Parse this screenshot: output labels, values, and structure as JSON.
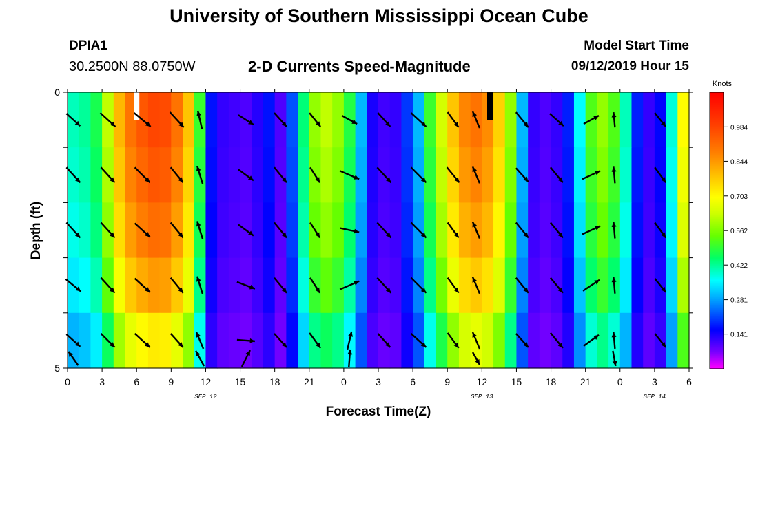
{
  "page": {
    "title": "University of Southern Mississippi Ocean Cube",
    "footer_title": "University of Southern Mississippi Ocean Cube",
    "station": "DPIA1",
    "coordinates": "30.2500N 88.0750W",
    "subtitle": "2-D Currents Speed-Magnitude",
    "model_label": "Model Start Time",
    "model_value": "09/12/2019 Hour 15"
  },
  "chart_data": {
    "type": "heatmap",
    "title": "2-D Currents Speed-Magnitude",
    "xlabel": "Forecast Time(Z)",
    "ylabel": "Depth (ft)",
    "x_ticks": [
      "0",
      "3",
      "6",
      "9",
      "12",
      "15",
      "18",
      "21",
      "0",
      "3",
      "6",
      "9",
      "12",
      "15",
      "18",
      "21",
      "0",
      "3",
      "6"
    ],
    "date_labels": [
      {
        "label": "SEP 12",
        "tick": 4
      },
      {
        "label": "SEP 13",
        "tick": 12
      },
      {
        "label": "SEP 14",
        "tick": 17
      }
    ],
    "y_ticks": [
      "0",
      "5"
    ],
    "colorbar": {
      "unit": "Knots",
      "min": 0.0,
      "max": 1.125,
      "labels": [
        "0.984",
        "0.844",
        "0.703",
        "0.562",
        "0.422",
        "0.281",
        "0.141"
      ],
      "label_values": [
        0.984,
        0.844,
        0.703,
        0.562,
        0.422,
        0.281,
        0.141
      ]
    },
    "depth_levels": 5,
    "time_steps": 54,
    "base_speed_profile": [
      0.4,
      0.42,
      0.47,
      0.62,
      0.8,
      0.9,
      0.95,
      0.98,
      0.97,
      0.9,
      0.78,
      0.5,
      0.17,
      0.12,
      0.11,
      0.1,
      0.13,
      0.17,
      0.1,
      0.22,
      0.44,
      0.58,
      0.62,
      0.58,
      0.48,
      0.3,
      0.14,
      0.11,
      0.12,
      0.2,
      0.3,
      0.5,
      0.64,
      0.78,
      0.87,
      0.9,
      0.86,
      0.76,
      0.58,
      0.3,
      0.12,
      0.1,
      0.12,
      0.18,
      0.36,
      0.52,
      0.58,
      0.52,
      0.4,
      0.18,
      0.12,
      0.16,
      0.38,
      0.7
    ],
    "depth_factors": [
      1.0,
      0.97,
      0.93,
      0.86,
      0.74,
      0.58
    ],
    "gaps": [
      {
        "time": 6.0,
        "color": "#ffffff"
      },
      {
        "time": 36.7,
        "color": "#000000"
      }
    ],
    "arrow_times": [
      0.5,
      3.5,
      6.5,
      9.5,
      11.5,
      15.5,
      18.5,
      21.5,
      24.5,
      27.5,
      30.5,
      33.5,
      35.5,
      39.5,
      42.5,
      45.5,
      47.5,
      51.5
    ],
    "arrows": [
      [
        [
          20,
          18
        ],
        [
          22,
          20
        ],
        [
          24,
          20
        ],
        [
          20,
          22
        ],
        [
          -6,
          -26
        ],
        [
          22,
          14
        ],
        [
          18,
          20
        ],
        [
          16,
          20
        ],
        [
          22,
          12
        ],
        [
          18,
          20
        ],
        [
          22,
          20
        ],
        [
          16,
          22
        ],
        [
          -10,
          -24
        ],
        [
          18,
          22
        ],
        [
          20,
          18
        ],
        [
          22,
          -12
        ],
        [
          -2,
          -22
        ],
        [
          16,
          20
        ]
      ],
      [
        [
          20,
          22
        ],
        [
          20,
          22
        ],
        [
          22,
          22
        ],
        [
          18,
          22
        ],
        [
          -8,
          -26
        ],
        [
          22,
          16
        ],
        [
          18,
          22
        ],
        [
          14,
          22
        ],
        [
          28,
          12
        ],
        [
          20,
          22
        ],
        [
          22,
          22
        ],
        [
          18,
          22
        ],
        [
          -10,
          -24
        ],
        [
          18,
          20
        ],
        [
          18,
          22
        ],
        [
          26,
          -12
        ],
        [
          -2,
          -24
        ],
        [
          16,
          22
        ]
      ],
      [
        [
          20,
          22
        ],
        [
          20,
          22
        ],
        [
          22,
          20
        ],
        [
          18,
          22
        ],
        [
          -8,
          -26
        ],
        [
          22,
          16
        ],
        [
          18,
          22
        ],
        [
          14,
          22
        ],
        [
          28,
          6
        ],
        [
          20,
          22
        ],
        [
          22,
          22
        ],
        [
          16,
          22
        ],
        [
          -10,
          -24
        ],
        [
          18,
          22
        ],
        [
          18,
          22
        ],
        [
          26,
          -12
        ],
        [
          -2,
          -24
        ],
        [
          16,
          22
        ]
      ],
      [
        [
          22,
          18
        ],
        [
          20,
          22
        ],
        [
          22,
          20
        ],
        [
          18,
          22
        ],
        [
          -8,
          -26
        ],
        [
          26,
          10
        ],
        [
          18,
          22
        ],
        [
          14,
          22
        ],
        [
          28,
          -12
        ],
        [
          20,
          22
        ],
        [
          22,
          22
        ],
        [
          16,
          22
        ],
        [
          -10,
          -24
        ],
        [
          18,
          22
        ],
        [
          18,
          22
        ],
        [
          24,
          -16
        ],
        [
          -2,
          -24
        ],
        [
          16,
          20
        ]
      ],
      [
        [
          20,
          18
        ],
        [
          20,
          20
        ],
        [
          22,
          20
        ],
        [
          18,
          20
        ],
        [
          -10,
          -24
        ],
        [
          26,
          2
        ],
        [
          18,
          20
        ],
        [
          16,
          22
        ],
        [
          6,
          -26
        ],
        [
          18,
          20
        ],
        [
          22,
          20
        ],
        [
          16,
          22
        ],
        [
          -10,
          -24
        ],
        [
          18,
          20
        ],
        [
          18,
          22
        ],
        [
          22,
          -16
        ],
        [
          -2,
          -24
        ],
        [
          16,
          20
        ]
      ],
      [
        [
          -14,
          -20
        ],
        [
          0,
          0
        ],
        [
          0,
          0
        ],
        [
          0,
          0
        ],
        [
          -12,
          -22
        ],
        [
          12,
          -24
        ],
        [
          0,
          0
        ],
        [
          0,
          0
        ],
        [
          2,
          -26
        ],
        [
          0,
          0
        ],
        [
          0,
          0
        ],
        [
          0,
          0
        ],
        [
          10,
          18
        ],
        [
          0,
          0
        ],
        [
          0,
          0
        ],
        [
          0,
          0
        ],
        [
          4,
          22
        ],
        [
          0,
          0
        ]
      ]
    ]
  }
}
